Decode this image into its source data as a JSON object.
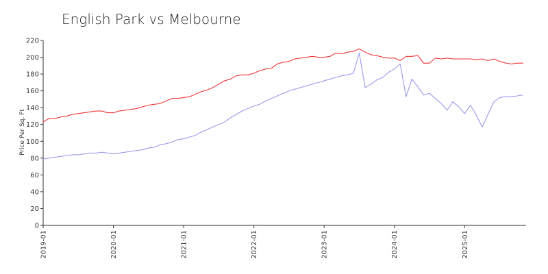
{
  "chart_data": {
    "type": "line",
    "title": "English Park vs Melbourne",
    "xlabel": "",
    "ylabel": "Price Per Sq. Ft",
    "ylim": [
      0,
      220
    ],
    "yticks": [
      0,
      20,
      40,
      60,
      80,
      100,
      120,
      140,
      160,
      180,
      200,
      220
    ],
    "xticks": [
      "2019-01",
      "2020-01",
      "2021-01",
      "2022-01",
      "2023-01",
      "2024-01",
      "2025-01"
    ],
    "x_start": "2019-01",
    "grid": false,
    "legend": "none",
    "series": [
      {
        "color": "#ee3333",
        "values": [
          123,
          127,
          127,
          129,
          130,
          132,
          133,
          134,
          135,
          136,
          136,
          134,
          134,
          136,
          137,
          138,
          139,
          141,
          143,
          144,
          145,
          148,
          151,
          151,
          152,
          153,
          156,
          159,
          161,
          164,
          168,
          172,
          174,
          178,
          179,
          179,
          181,
          184,
          186,
          187,
          192,
          194,
          195,
          198,
          199,
          200,
          201,
          200,
          200,
          201,
          205,
          204,
          206,
          207,
          210,
          206,
          203,
          202,
          200,
          199,
          199,
          196,
          201,
          201,
          202,
          193,
          193,
          199,
          198,
          199,
          198,
          198,
          198,
          198,
          197,
          198,
          196,
          198,
          195,
          193,
          192,
          193,
          193
        ]
      },
      {
        "color": "#9999ee",
        "values": [
          79,
          80,
          81,
          82,
          83,
          84,
          84,
          85,
          86,
          86,
          87,
          86,
          85,
          86,
          87,
          88,
          89,
          90,
          92,
          93,
          96,
          97,
          99,
          102,
          103,
          105,
          107,
          111,
          114,
          117,
          120,
          123,
          128,
          132,
          136,
          139,
          142,
          144,
          148,
          151,
          154,
          157,
          160,
          162,
          164,
          166,
          168,
          170,
          172,
          174,
          176,
          178,
          179,
          181,
          205,
          164,
          168,
          173,
          176,
          182,
          186,
          192,
          153,
          174,
          165,
          155,
          157,
          151,
          145,
          137,
          147,
          141,
          133,
          143,
          131,
          117,
          132,
          147,
          152,
          153,
          153,
          154,
          155
        ]
      }
    ]
  }
}
